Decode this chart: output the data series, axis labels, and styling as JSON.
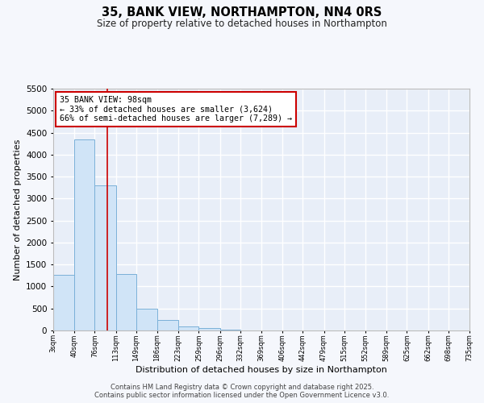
{
  "title1": "35, BANK VIEW, NORTHAMPTON, NN4 0RS",
  "title2": "Size of property relative to detached houses in Northampton",
  "xlabel": "Distribution of detached houses by size in Northampton",
  "ylabel": "Number of detached properties",
  "bar_color": "#d0e4f7",
  "bar_edge_color": "#7ab0d8",
  "bg_color": "#e8eef8",
  "fig_color": "#f5f7fc",
  "grid_color": "#ffffff",
  "vline_color": "#cc0000",
  "vline_x": 98,
  "annotation_line1": "35 BANK VIEW: 98sqm",
  "annotation_line2": "← 33% of detached houses are smaller (3,624)",
  "annotation_line3": "66% of semi-detached houses are larger (7,289) →",
  "annotation_box_color": "#cc0000",
  "bins": [
    3,
    40,
    76,
    113,
    149,
    186,
    223,
    259,
    296,
    332,
    369,
    406,
    442,
    479,
    515,
    552,
    589,
    625,
    662,
    698,
    735
  ],
  "bin_labels": [
    "3sqm",
    "40sqm",
    "76sqm",
    "113sqm",
    "149sqm",
    "186sqm",
    "223sqm",
    "259sqm",
    "296sqm",
    "332sqm",
    "369sqm",
    "406sqm",
    "442sqm",
    "479sqm",
    "515sqm",
    "552sqm",
    "589sqm",
    "625sqm",
    "662sqm",
    "698sqm",
    "735sqm"
  ],
  "bar_heights": [
    1270,
    4350,
    3300,
    1280,
    500,
    230,
    90,
    50,
    15,
    5,
    2,
    1,
    0,
    0,
    0,
    0,
    0,
    0,
    0,
    0
  ],
  "ylim": [
    0,
    5500
  ],
  "yticks": [
    0,
    500,
    1000,
    1500,
    2000,
    2500,
    3000,
    3500,
    4000,
    4500,
    5000,
    5500
  ],
  "footer1": "Contains HM Land Registry data © Crown copyright and database right 2025.",
  "footer2": "Contains public sector information licensed under the Open Government Licence v3.0."
}
